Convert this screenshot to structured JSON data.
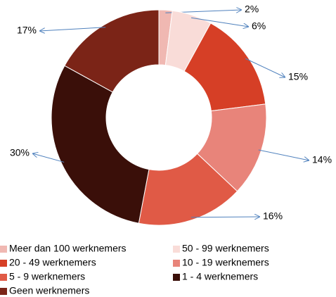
{
  "chart_data": {
    "type": "donut",
    "categories": [
      "Meer dan 100 werknemers",
      "50 - 99 werknemers",
      "20 - 49 werknemers",
      "10 - 19 werknemers",
      "5 - 9 werknemers",
      "1 - 4 werknemers",
      "Geen werknemers"
    ],
    "values": [
      2,
      6,
      15,
      14,
      16,
      30,
      17
    ],
    "value_labels": [
      "2%",
      "6%",
      "15%",
      "14%",
      "16%",
      "30%",
      "17%"
    ],
    "colors": [
      "#f0b8b2",
      "#f9dcd8",
      "#d63f26",
      "#e8847a",
      "#e05a46",
      "#3a0f09",
      "#7b2417"
    ],
    "legend": "bottom"
  }
}
